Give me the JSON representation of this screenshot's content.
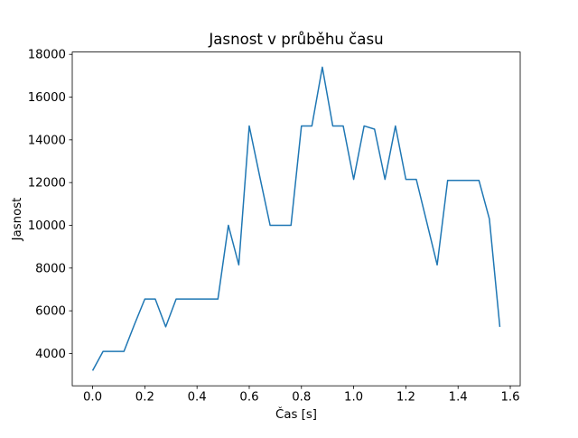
{
  "chart_data": {
    "type": "line",
    "title": "Jasnost v průběhu času",
    "xlabel": "Čas [s]",
    "ylabel": "Jasnost",
    "x": [
      0.0,
      0.04,
      0.08,
      0.12,
      0.16,
      0.2,
      0.24,
      0.28,
      0.32,
      0.36,
      0.4,
      0.44,
      0.48,
      0.52,
      0.56,
      0.6,
      0.64,
      0.68,
      0.72,
      0.76,
      0.8,
      0.84,
      0.88,
      0.92,
      0.96,
      1.0,
      1.04,
      1.08,
      1.12,
      1.16,
      1.2,
      1.24,
      1.28,
      1.32,
      1.36,
      1.4,
      1.44,
      1.48,
      1.52,
      1.56
    ],
    "y": [
      3200,
      4100,
      4100,
      4100,
      5350,
      6550,
      6550,
      5250,
      6550,
      6550,
      6550,
      6550,
      6550,
      10000,
      8150,
      14650,
      12300,
      10000,
      10000,
      10000,
      14650,
      14650,
      17400,
      14650,
      14650,
      12150,
      14650,
      14500,
      12150,
      14650,
      12150,
      12150,
      10150,
      8150,
      12100,
      12100,
      12100,
      12100,
      10300,
      5250
    ],
    "xlim": [
      -0.078,
      1.638
    ],
    "ylim": [
      2490,
      18110
    ],
    "xtick_values": [
      0.0,
      0.2,
      0.4,
      0.6,
      0.8,
      1.0,
      1.2,
      1.4,
      1.6
    ],
    "xtick_labels": [
      "0.0",
      "0.2",
      "0.4",
      "0.6",
      "0.8",
      "1.0",
      "1.2",
      "1.4",
      "1.6"
    ],
    "ytick_values": [
      4000,
      6000,
      8000,
      10000,
      12000,
      14000,
      16000,
      18000
    ],
    "ytick_labels": [
      "4000",
      "6000",
      "8000",
      "10000",
      "12000",
      "14000",
      "16000",
      "18000"
    ],
    "line_color": "#1f77b4",
    "background_color": "#ffffff",
    "grid": false,
    "legend_position": null
  }
}
